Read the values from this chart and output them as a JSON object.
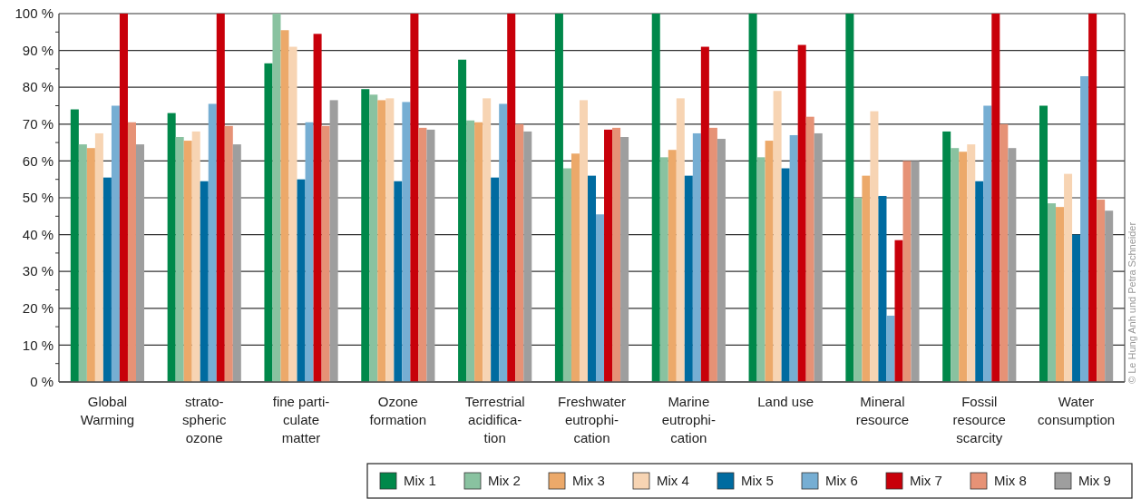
{
  "chart_data": {
    "type": "bar",
    "categories": [
      "Global\nWarming",
      "strato-\nspheric\nozone",
      "fine parti-\nculate\nmatter",
      "Ozone\nformation",
      "Terrestrial\nacidifica-\ntion",
      "Freshwater\neutrophi-\ncation",
      "Marine\neutrophi-\ncation",
      "Land use",
      "Mineral\nresource",
      "Fossil\nresource\nscarcity",
      "Water\nconsumption"
    ],
    "series": [
      {
        "name": "Mix 1",
        "color": "#00884a",
        "values": [
          74,
          73,
          86.5,
          79.5,
          87.5,
          100,
          100,
          100,
          100,
          68,
          75
        ]
      },
      {
        "name": "Mix 2",
        "color": "#89c2a0",
        "values": [
          64.5,
          66.5,
          100,
          78,
          71,
          58,
          61,
          61,
          50,
          63.5,
          48.5
        ]
      },
      {
        "name": "Mix 3",
        "color": "#eca96a",
        "values": [
          63.5,
          65.5,
          95.5,
          76.5,
          70.5,
          62,
          63,
          65.5,
          56,
          62.5,
          47.5
        ]
      },
      {
        "name": "Mix 4",
        "color": "#f7d4b3",
        "values": [
          67.5,
          68,
          91,
          77,
          77,
          76.5,
          77,
          79,
          73.5,
          64.5,
          56.5
        ]
      },
      {
        "name": "Mix 5",
        "color": "#006ba0",
        "values": [
          55.5,
          54.5,
          55,
          54.5,
          55.5,
          56,
          56,
          58,
          50.5,
          54.5,
          40
        ]
      },
      {
        "name": "Mix 6",
        "color": "#76aed3",
        "values": [
          75,
          75.5,
          70.5,
          76,
          75.5,
          45.5,
          67.5,
          67,
          18,
          75,
          83
        ]
      },
      {
        "name": "Mix 7",
        "color": "#c8000a",
        "values": [
          100,
          100,
          94.5,
          100,
          100,
          68.5,
          91,
          91.5,
          38.5,
          100,
          100
        ]
      },
      {
        "name": "Mix 8",
        "color": "#e69276",
        "values": [
          70.5,
          69.5,
          69.5,
          69,
          70,
          69,
          69,
          72,
          60,
          70,
          49.5
        ]
      },
      {
        "name": "Mix 9",
        "color": "#9e9e9e",
        "values": [
          64.5,
          64.5,
          76.5,
          68.5,
          68,
          66.5,
          66,
          67.5,
          60,
          63.5,
          46.5
        ]
      }
    ],
    "ylim": [
      0,
      100
    ],
    "yticks": [
      {
        "value": 0,
        "label": "0 %"
      },
      {
        "value": 5,
        "label": null
      },
      {
        "value": 10,
        "label": "10 %"
      },
      {
        "value": 15,
        "label": null
      },
      {
        "value": 20,
        "label": "20 %"
      },
      {
        "value": 25,
        "label": null
      },
      {
        "value": 30,
        "label": "30 %"
      },
      {
        "value": 35,
        "label": null
      },
      {
        "value": 40,
        "label": "40 %"
      },
      {
        "value": 45,
        "label": null
      },
      {
        "value": 50,
        "label": "50 %"
      },
      {
        "value": 55,
        "label": null
      },
      {
        "value": 60,
        "label": "60 %"
      },
      {
        "value": 65,
        "label": null
      },
      {
        "value": 70,
        "label": "70 %"
      },
      {
        "value": 75,
        "label": null
      },
      {
        "value": 80,
        "label": "80 %"
      },
      {
        "value": 85,
        "label": null
      },
      {
        "value": 90,
        "label": "90 %"
      },
      {
        "value": 95,
        "label": null
      },
      {
        "value": 100,
        "label": "100 %"
      }
    ],
    "grid": "y",
    "legend": "bottom right",
    "annotations": [
      "© Le Hung Anh und Petra Schneider"
    ]
  }
}
